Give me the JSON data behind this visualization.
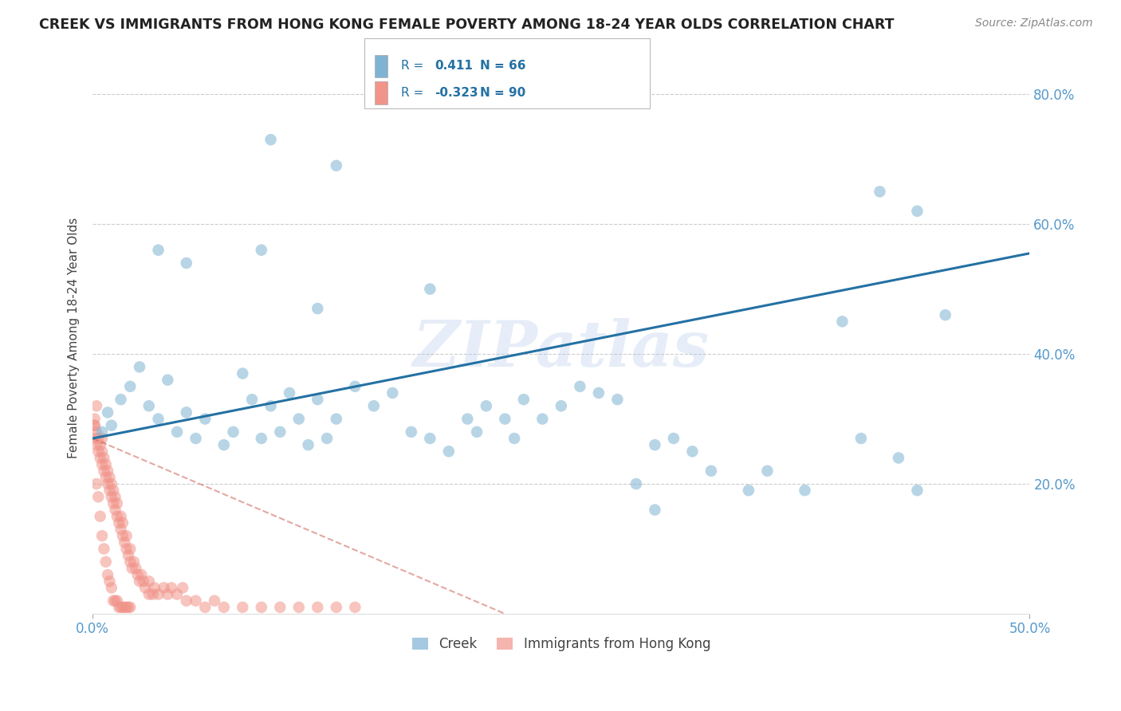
{
  "title": "CREEK VS IMMIGRANTS FROM HONG KONG FEMALE POVERTY AMONG 18-24 YEAR OLDS CORRELATION CHART",
  "source": "Source: ZipAtlas.com",
  "ylabel": "Female Poverty Among 18-24 Year Olds",
  "xlim": [
    0.0,
    0.5
  ],
  "ylim": [
    0.0,
    0.85
  ],
  "xticks": [
    0.0,
    0.5
  ],
  "yticks": [
    0.2,
    0.4,
    0.6,
    0.8
  ],
  "xticklabels": [
    "0.0%",
    "50.0%"
  ],
  "yticklabels_right": [
    "20.0%",
    "40.0%",
    "60.0%",
    "80.0%"
  ],
  "creek_color": "#7fb3d3",
  "hk_color": "#f1948a",
  "creek_line_color": "#2471a3",
  "hk_line_color": "#cd6155",
  "creek_R": "0.411",
  "creek_N": "66",
  "hk_R": "-0.323",
  "hk_N": "90",
  "watermark": "ZIPatlas",
  "background_color": "#ffffff",
  "grid_color": "#cccccc",
  "legend_text_color": "#2471a3",
  "creek_line_x": [
    0.0,
    0.5
  ],
  "creek_line_y": [
    0.27,
    0.555
  ],
  "hk_line_x": [
    0.0,
    0.22
  ],
  "hk_line_y": [
    0.27,
    0.0
  ],
  "creek_scatter_x": [
    0.005,
    0.008,
    0.01,
    0.015,
    0.02,
    0.025,
    0.03,
    0.035,
    0.04,
    0.045,
    0.05,
    0.055,
    0.06,
    0.07,
    0.075,
    0.08,
    0.085,
    0.09,
    0.095,
    0.1,
    0.105,
    0.11,
    0.115,
    0.12,
    0.125,
    0.13,
    0.14,
    0.15,
    0.16,
    0.17,
    0.18,
    0.19,
    0.2,
    0.205,
    0.21,
    0.22,
    0.225,
    0.23,
    0.24,
    0.25,
    0.26,
    0.27,
    0.28,
    0.29,
    0.3,
    0.31,
    0.32,
    0.33,
    0.35,
    0.36,
    0.38,
    0.4,
    0.41,
    0.43,
    0.44,
    0.455,
    0.035,
    0.05,
    0.09,
    0.12,
    0.18,
    0.3,
    0.42,
    0.44,
    0.095,
    0.13
  ],
  "creek_scatter_y": [
    0.28,
    0.31,
    0.29,
    0.33,
    0.35,
    0.38,
    0.32,
    0.3,
    0.36,
    0.28,
    0.31,
    0.27,
    0.3,
    0.26,
    0.28,
    0.37,
    0.33,
    0.27,
    0.32,
    0.28,
    0.34,
    0.3,
    0.26,
    0.33,
    0.27,
    0.3,
    0.35,
    0.32,
    0.34,
    0.28,
    0.27,
    0.25,
    0.3,
    0.28,
    0.32,
    0.3,
    0.27,
    0.33,
    0.3,
    0.32,
    0.35,
    0.34,
    0.33,
    0.2,
    0.26,
    0.27,
    0.25,
    0.22,
    0.19,
    0.22,
    0.19,
    0.45,
    0.27,
    0.24,
    0.19,
    0.46,
    0.56,
    0.54,
    0.56,
    0.47,
    0.5,
    0.16,
    0.65,
    0.62,
    0.73,
    0.69
  ],
  "hk_scatter_x": [
    0.001,
    0.001,
    0.001,
    0.002,
    0.002,
    0.002,
    0.003,
    0.003,
    0.004,
    0.004,
    0.005,
    0.005,
    0.005,
    0.006,
    0.006,
    0.007,
    0.007,
    0.008,
    0.008,
    0.009,
    0.009,
    0.01,
    0.01,
    0.011,
    0.011,
    0.012,
    0.012,
    0.013,
    0.013,
    0.014,
    0.015,
    0.015,
    0.016,
    0.016,
    0.017,
    0.018,
    0.018,
    0.019,
    0.02,
    0.02,
    0.021,
    0.022,
    0.023,
    0.024,
    0.025,
    0.026,
    0.027,
    0.028,
    0.03,
    0.03,
    0.032,
    0.033,
    0.035,
    0.038,
    0.04,
    0.042,
    0.045,
    0.048,
    0.05,
    0.055,
    0.06,
    0.065,
    0.07,
    0.08,
    0.09,
    0.1,
    0.11,
    0.12,
    0.13,
    0.14,
    0.001,
    0.002,
    0.003,
    0.004,
    0.005,
    0.006,
    0.007,
    0.008,
    0.009,
    0.01,
    0.011,
    0.012,
    0.013,
    0.014,
    0.015,
    0.016,
    0.017,
    0.018,
    0.019,
    0.02
  ],
  "hk_scatter_y": [
    0.27,
    0.29,
    0.3,
    0.26,
    0.28,
    0.32,
    0.25,
    0.27,
    0.24,
    0.26,
    0.23,
    0.25,
    0.27,
    0.22,
    0.24,
    0.21,
    0.23,
    0.2,
    0.22,
    0.19,
    0.21,
    0.18,
    0.2,
    0.17,
    0.19,
    0.16,
    0.18,
    0.15,
    0.17,
    0.14,
    0.13,
    0.15,
    0.12,
    0.14,
    0.11,
    0.1,
    0.12,
    0.09,
    0.08,
    0.1,
    0.07,
    0.08,
    0.07,
    0.06,
    0.05,
    0.06,
    0.05,
    0.04,
    0.03,
    0.05,
    0.03,
    0.04,
    0.03,
    0.04,
    0.03,
    0.04,
    0.03,
    0.04,
    0.02,
    0.02,
    0.01,
    0.02,
    0.01,
    0.01,
    0.01,
    0.01,
    0.01,
    0.01,
    0.01,
    0.01,
    0.29,
    0.2,
    0.18,
    0.15,
    0.12,
    0.1,
    0.08,
    0.06,
    0.05,
    0.04,
    0.02,
    0.02,
    0.02,
    0.01,
    0.01,
    0.01,
    0.01,
    0.01,
    0.01,
    0.01
  ]
}
